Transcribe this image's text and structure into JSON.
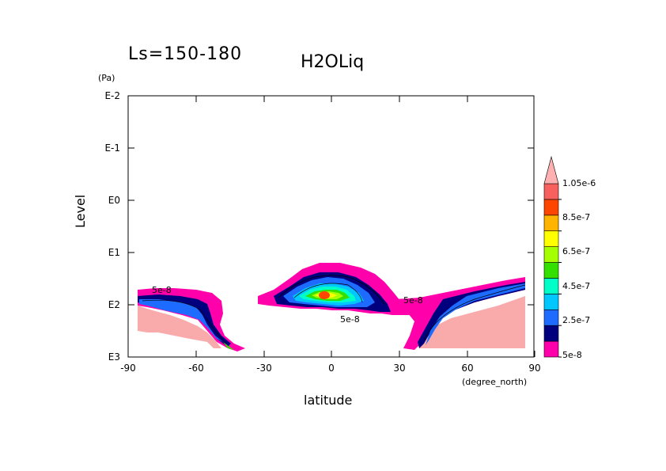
{
  "chart_data": {
    "type": "contour",
    "title_left": "Ls=150-180",
    "title": "H2OLiq",
    "ylabel": "Level",
    "yunit": "(Pa)",
    "xlabel": "latitude",
    "xunit": "(degree_north)",
    "x_ticks": [
      "-90",
      "-60",
      "-30",
      "0",
      "30",
      "60",
      "90"
    ],
    "y_ticks": [
      "E-2",
      "E-1",
      "E0",
      "E1",
      "E2",
      "E3"
    ],
    "xlim": [
      -90,
      90
    ],
    "ylim_log10_pa": [
      -2,
      3
    ],
    "contour_labels": [
      "5e-8",
      "5e-8",
      "5e-8"
    ],
    "colorbar": {
      "labels": [
        "1.05e-6",
        "8.5e-7",
        "6.5e-7",
        "4.5e-7",
        "2.5e-7",
        "5e-8"
      ],
      "levels": [
        5e-08,
        1.5e-07,
        2.5e-07,
        3.5e-07,
        4.5e-07,
        5.5e-07,
        6.5e-07,
        7.5e-07,
        8.5e-07,
        9.5e-07,
        1.05e-06
      ],
      "colors": [
        "#ff00aa",
        "#00007f",
        "#1e6cff",
        "#00c8ff",
        "#00ffc8",
        "#34e000",
        "#a6ff00",
        "#ffff00",
        "#ffb400",
        "#ff4600",
        "#f86060",
        "#ffb0b0"
      ]
    },
    "masked_color": "#f9aaaa"
  }
}
